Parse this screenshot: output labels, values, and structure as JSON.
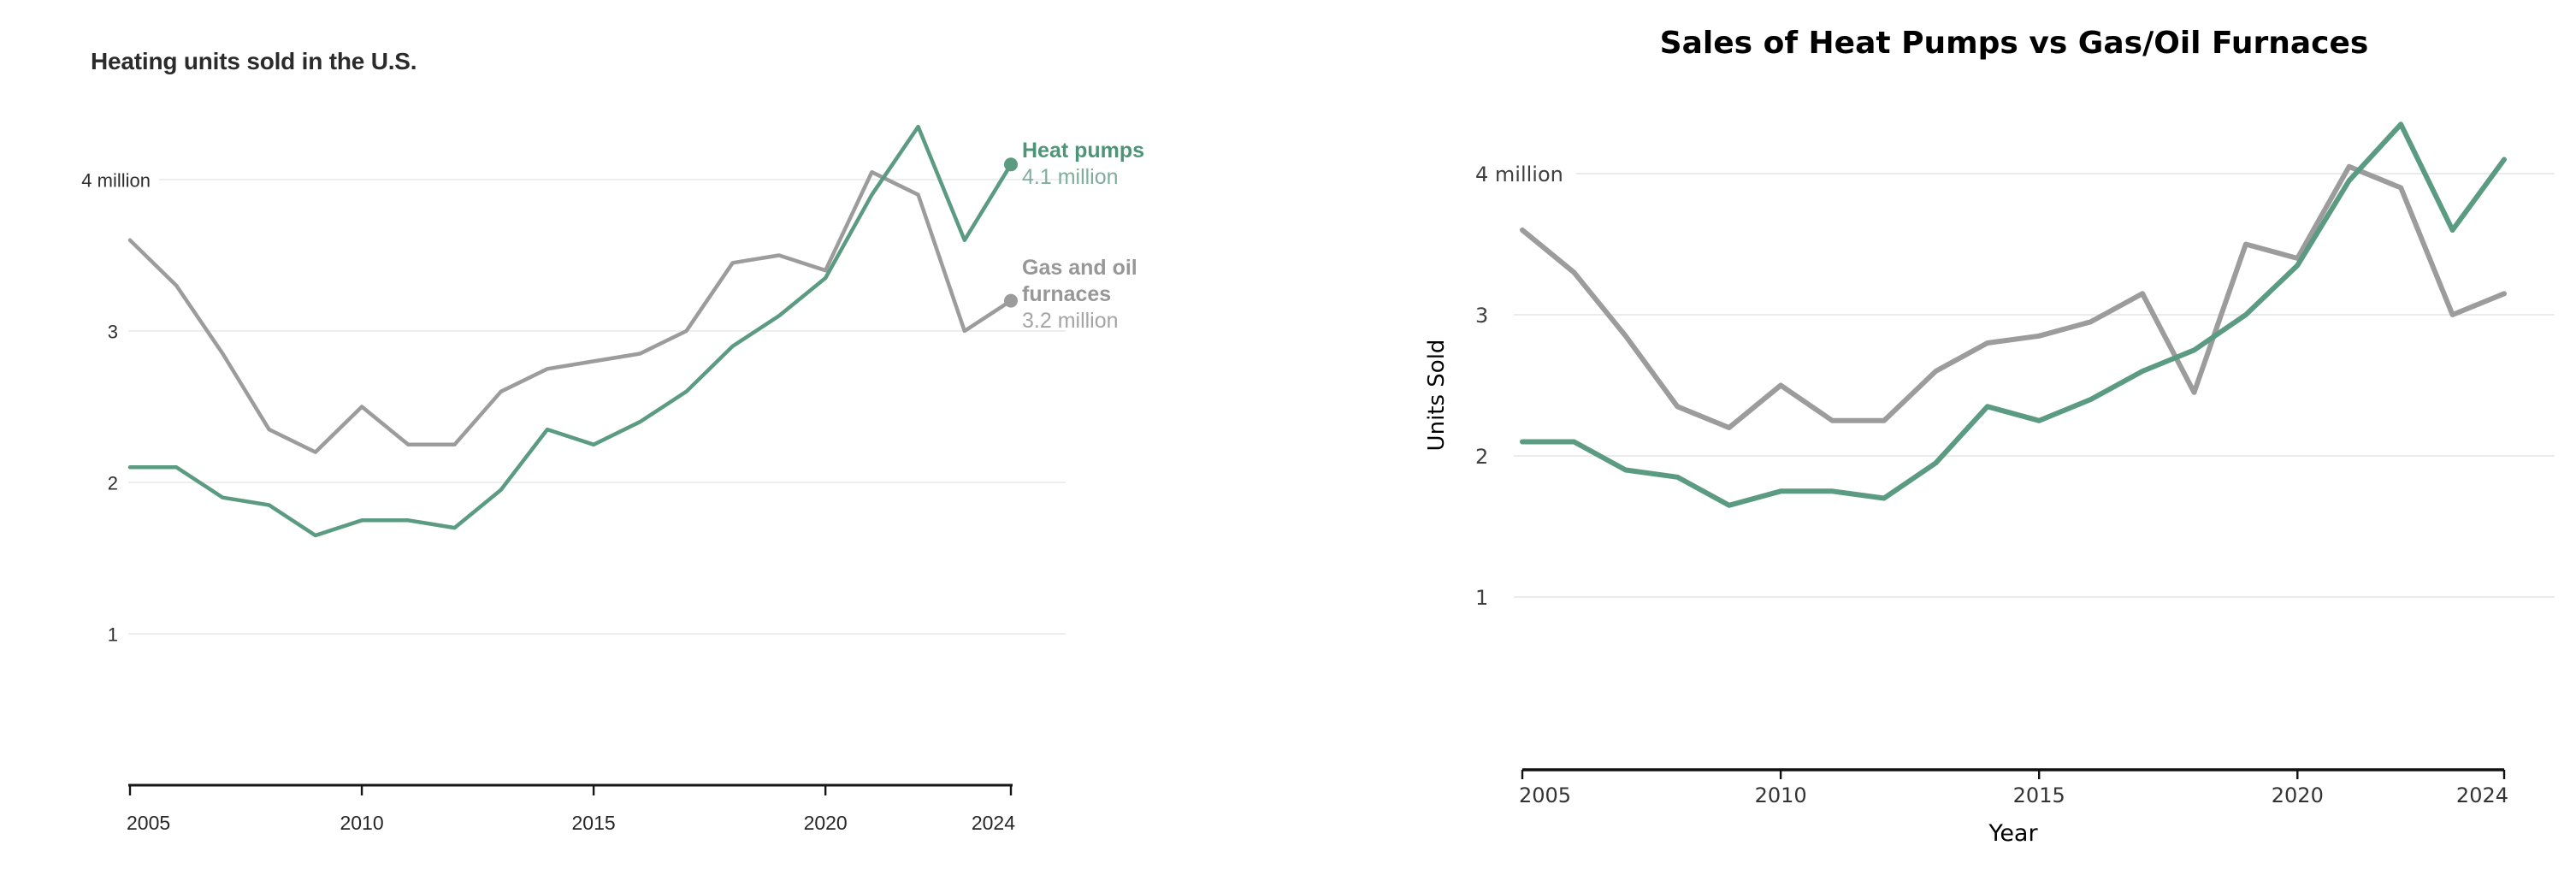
{
  "page": {
    "background": "#ffffff"
  },
  "left_chart": {
    "title": "Heating units sold in the U.S.",
    "legend": {
      "heat_pumps_label": "Heat pumps",
      "heat_pumps_value": "4.1 million",
      "furnaces_label_line1": "Gas and oil",
      "furnaces_label_line2": "furnaces",
      "furnaces_value": "3.2 million"
    }
  },
  "right_chart": {
    "title": "Sales of Heat Pumps vs Gas/Oil Furnaces",
    "y_axis_title": "Units Sold",
    "x_axis_title": "Year"
  },
  "colors": {
    "heat_pumps": "#5b9b82",
    "furnaces": "#9c9c9c",
    "grid": "#e9e9e9",
    "axis": "#141414"
  },
  "chart_data": [
    {
      "id": "left",
      "type": "line",
      "title": "Heating units sold in the U.S.",
      "x": [
        2005,
        2006,
        2007,
        2008,
        2009,
        2010,
        2011,
        2012,
        2013,
        2014,
        2015,
        2016,
        2017,
        2018,
        2019,
        2020,
        2021,
        2022,
        2023,
        2024
      ],
      "x_ticks": [
        {
          "year": 2005,
          "label": "2005"
        },
        {
          "year": 2010,
          "label": "2010"
        },
        {
          "year": 2015,
          "label": "2015"
        },
        {
          "year": 2020,
          "label": "2020"
        },
        {
          "year": 2024,
          "label": "2024"
        }
      ],
      "y_ticks": [
        {
          "value": 4,
          "label": "4 million"
        },
        {
          "value": 3,
          "label": "3"
        },
        {
          "value": 2,
          "label": "2"
        },
        {
          "value": 1,
          "label": "1"
        }
      ],
      "ylim": [
        0,
        4.6
      ],
      "grid": true,
      "legend_position": "right-of-line-ends",
      "series": [
        {
          "name": "Gas and oil furnaces",
          "color": "#9c9c9c",
          "values": [
            3.6,
            3.3,
            2.85,
            2.35,
            2.2,
            2.5,
            2.25,
            2.25,
            2.6,
            2.75,
            2.8,
            2.85,
            3.0,
            3.45,
            3.5,
            3.4,
            4.05,
            3.9,
            3.0,
            3.2
          ],
          "end_value_label": "3.2 million",
          "end_dot": true
        },
        {
          "name": "Heat pumps",
          "color": "#5b9b82",
          "values": [
            2.1,
            2.1,
            1.9,
            1.85,
            1.65,
            1.75,
            1.75,
            1.7,
            1.95,
            2.35,
            2.25,
            2.4,
            2.6,
            2.9,
            3.1,
            3.35,
            3.9,
            4.35,
            3.6,
            4.1
          ],
          "end_value_label": "4.1 million",
          "end_dot": true
        }
      ]
    },
    {
      "id": "right",
      "type": "line",
      "title": "Sales of Heat Pumps vs Gas/Oil Furnaces",
      "xlabel": "Year",
      "ylabel": "Units Sold",
      "x": [
        2005,
        2006,
        2007,
        2008,
        2009,
        2010,
        2011,
        2012,
        2013,
        2014,
        2015,
        2016,
        2017,
        2018,
        2019,
        2020,
        2021,
        2022,
        2023,
        2024
      ],
      "x_ticks": [
        {
          "year": 2005,
          "label": "2005"
        },
        {
          "year": 2010,
          "label": "2010"
        },
        {
          "year": 2015,
          "label": "2015"
        },
        {
          "year": 2020,
          "label": "2020"
        },
        {
          "year": 2024,
          "label": "2024"
        }
      ],
      "y_ticks": [
        {
          "value": 4,
          "label": "4 million"
        },
        {
          "value": 3,
          "label": "3"
        },
        {
          "value": 2,
          "label": "2"
        },
        {
          "value": 1,
          "label": "1"
        }
      ],
      "ylim": [
        0,
        4.6
      ],
      "grid": true,
      "series": [
        {
          "name": "Gas and oil furnaces",
          "color": "#9c9c9c",
          "values": [
            3.6,
            3.3,
            2.85,
            2.35,
            2.2,
            2.5,
            2.25,
            2.25,
            2.6,
            2.8,
            2.85,
            2.95,
            3.15,
            2.45,
            3.5,
            3.4,
            4.05,
            3.9,
            3.0,
            3.15
          ],
          "end_dot": false
        },
        {
          "name": "Heat pumps",
          "color": "#5b9b82",
          "values": [
            2.1,
            2.1,
            1.9,
            1.85,
            1.65,
            1.75,
            1.75,
            1.7,
            1.95,
            2.35,
            2.25,
            2.4,
            2.6,
            2.75,
            3.0,
            3.35,
            3.95,
            4.35,
            3.6,
            4.1
          ],
          "end_dot": false
        }
      ]
    }
  ]
}
